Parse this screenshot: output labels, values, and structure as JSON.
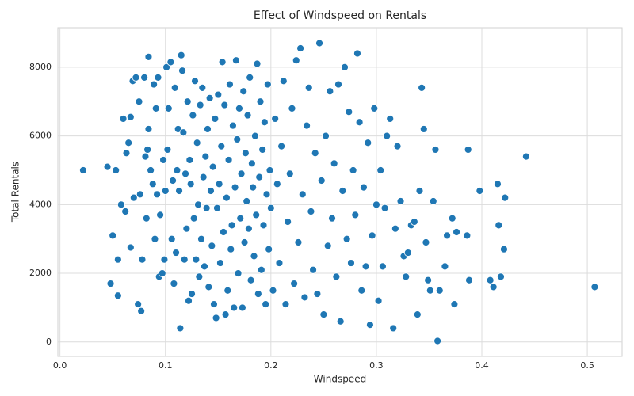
{
  "chart_data": {
    "type": "scatter",
    "title": "Effect of Windspeed on Rentals",
    "x_label": "Windspeed",
    "y_label": "Total Rentals",
    "color": "#1f77b4",
    "grid": true,
    "xlim": [
      -0.002,
      0.533
    ],
    "ylim": [
      -420,
      9150
    ],
    "xticks": [
      {
        "value": 0,
        "label": "0.0"
      },
      0.1,
      0.2,
      0.3,
      0.4,
      0.5
    ],
    "yticks": [
      0,
      2000,
      4000,
      6000,
      8000
    ],
    "x": [
      0.022,
      0.045,
      0.048,
      0.05,
      0.053,
      0.055,
      0.055,
      0.058,
      0.06,
      0.062,
      0.063,
      0.065,
      0.067,
      0.067,
      0.069,
      0.07,
      0.072,
      0.074,
      0.075,
      0.076,
      0.077,
      0.078,
      0.08,
      0.081,
      0.082,
      0.083,
      0.084,
      0.084,
      0.086,
      0.088,
      0.089,
      0.09,
      0.091,
      0.092,
      0.093,
      0.094,
      0.095,
      0.097,
      0.098,
      0.099,
      0.1,
      0.101,
      0.102,
      0.103,
      0.105,
      0.106,
      0.107,
      0.108,
      0.109,
      0.11,
      0.111,
      0.112,
      0.113,
      0.114,
      0.115,
      0.116,
      0.117,
      0.118,
      0.119,
      0.12,
      0.121,
      0.122,
      0.123,
      0.124,
      0.125,
      0.126,
      0.127,
      0.128,
      0.129,
      0.13,
      0.131,
      0.132,
      0.133,
      0.134,
      0.135,
      0.136,
      0.137,
      0.138,
      0.139,
      0.14,
      0.141,
      0.142,
      0.143,
      0.144,
      0.145,
      0.146,
      0.147,
      0.148,
      0.149,
      0.15,
      0.151,
      0.152,
      0.153,
      0.154,
      0.155,
      0.156,
      0.157,
      0.158,
      0.159,
      0.16,
      0.161,
      0.162,
      0.163,
      0.164,
      0.165,
      0.166,
      0.167,
      0.168,
      0.169,
      0.17,
      0.171,
      0.172,
      0.173,
      0.174,
      0.175,
      0.176,
      0.177,
      0.178,
      0.179,
      0.18,
      0.181,
      0.182,
      0.183,
      0.184,
      0.185,
      0.186,
      0.187,
      0.188,
      0.189,
      0.19,
      0.191,
      0.192,
      0.193,
      0.194,
      0.195,
      0.196,
      0.197,
      0.198,
      0.199,
      0.2,
      0.202,
      0.204,
      0.206,
      0.208,
      0.21,
      0.212,
      0.214,
      0.216,
      0.218,
      0.22,
      0.222,
      0.224,
      0.226,
      0.228,
      0.23,
      0.232,
      0.234,
      0.236,
      0.238,
      0.24,
      0.242,
      0.244,
      0.246,
      0.248,
      0.25,
      0.252,
      0.254,
      0.256,
      0.258,
      0.26,
      0.262,
      0.264,
      0.266,
      0.268,
      0.27,
      0.272,
      0.274,
      0.276,
      0.278,
      0.28,
      0.282,
      0.284,
      0.286,
      0.288,
      0.29,
      0.292,
      0.294,
      0.296,
      0.298,
      0.3,
      0.302,
      0.304,
      0.306,
      0.308,
      0.31,
      0.313,
      0.316,
      0.318,
      0.32,
      0.323,
      0.326,
      0.328,
      0.33,
      0.333,
      0.336,
      0.339,
      0.341,
      0.343,
      0.345,
      0.347,
      0.349,
      0.351,
      0.354,
      0.356,
      0.358,
      0.36,
      0.365,
      0.367,
      0.372,
      0.374,
      0.376,
      0.386,
      0.387,
      0.388,
      0.398,
      0.408,
      0.411,
      0.415,
      0.416,
      0.418,
      0.421,
      0.422,
      0.442,
      0.507
    ],
    "values": [
      5000,
      5100,
      1700,
      3100,
      5000,
      1350,
      2400,
      4000,
      6500,
      3800,
      5500,
      5800,
      2750,
      6550,
      7600,
      4200,
      7700,
      1100,
      7000,
      4300,
      900,
      2400,
      7700,
      5400,
      3600,
      5600,
      6200,
      8300,
      5000,
      4600,
      7500,
      3000,
      6800,
      4300,
      7700,
      1900,
      3700,
      2000,
      5300,
      2400,
      4400,
      8000,
      5600,
      6800,
      8150,
      3000,
      4700,
      1700,
      7400,
      2600,
      5000,
      6200,
      4400,
      400,
      8350,
      7900,
      6100,
      2400,
      4900,
      3300,
      7000,
      1200,
      5300,
      4600,
      1400,
      6600,
      3600,
      7600,
      2400,
      5800,
      4000,
      1900,
      6900,
      3000,
      7400,
      4800,
      2200,
      5400,
      3900,
      6200,
      1600,
      7100,
      4400,
      2800,
      5100,
      1100,
      6500,
      700,
      3900,
      7200,
      4600,
      2300,
      5700,
      8150,
      3200,
      6900,
      800,
      4200,
      1500,
      5300,
      7500,
      2700,
      3400,
      6300,
      1000,
      4500,
      8200,
      5900,
      2000,
      6800,
      3600,
      4900,
      1000,
      7300,
      2900,
      5500,
      4100,
      6600,
      3300,
      7700,
      1800,
      5200,
      4500,
      2500,
      6000,
      3700,
      8100,
      1400,
      4800,
      7000,
      2100,
      5600,
      3400,
      6400,
      1100,
      4300,
      7500,
      2700,
      5000,
      3900,
      1500,
      6500,
      4600,
      2300,
      5700,
      7600,
      1100,
      3500,
      4900,
      6800,
      1700,
      8200,
      2900,
      8550,
      4300,
      1300,
      6300,
      7400,
      3800,
      2100,
      5500,
      1400,
      8700,
      4700,
      800,
      6000,
      2800,
      7300,
      3600,
      5200,
      1900,
      7500,
      600,
      4400,
      8000,
      3000,
      6700,
      2300,
      5000,
      3700,
      8400,
      6400,
      1500,
      4500,
      2200,
      5800,
      500,
      3100,
      6800,
      4000,
      1200,
      5000,
      2200,
      3900,
      6000,
      6500,
      400,
      3300,
      5700,
      4100,
      2500,
      1900,
      2600,
      3400,
      3500,
      800,
      4400,
      7400,
      6200,
      2900,
      1800,
      1500,
      4100,
      5600,
      30,
      1500,
      2200,
      3100,
      3600,
      1100,
      3200,
      3100,
      5600,
      1800,
      4400,
      1800,
      1600,
      4600,
      3400,
      1900,
      2700,
      4200,
      5400,
      1600
    ]
  }
}
